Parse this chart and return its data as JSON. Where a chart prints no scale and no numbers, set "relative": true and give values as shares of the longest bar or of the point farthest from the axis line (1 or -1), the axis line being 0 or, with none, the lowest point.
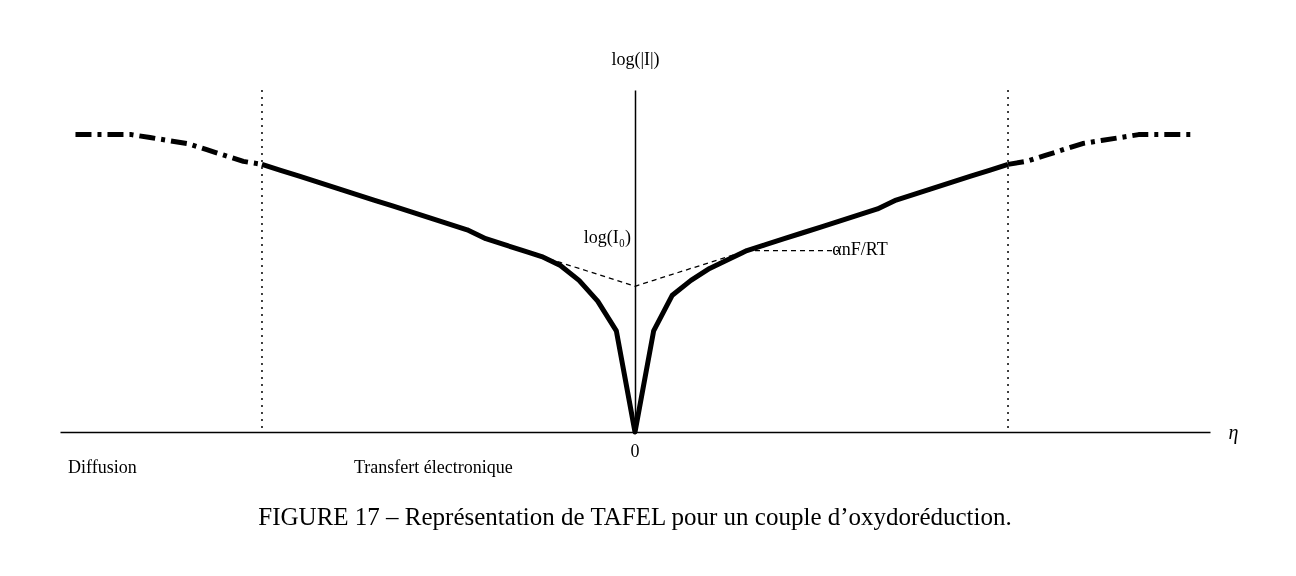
{
  "chart_data": {
    "type": "line",
    "relative": true,
    "title": "FIGURE 17 – Représentation de TAFEL pour un couple d’oxydoréduction.",
    "xlabel": "η",
    "ylabel": "log(|I|)",
    "categories": [
      null,
      null,
      null,
      null,
      null,
      null,
      null,
      null,
      null,
      null,
      null,
      null,
      null,
      null,
      null,
      null,
      null,
      null,
      null,
      null,
      null,
      null,
      null,
      null,
      null,
      null,
      null,
      null,
      null,
      null,
      null,
      null,
      null,
      null,
      null,
      null,
      null,
      null,
      null,
      null,
      null,
      null,
      null,
      null,
      null,
      null,
      null,
      null,
      null,
      null,
      null,
      null,
      null,
      null,
      null,
      null,
      null,
      null,
      null,
      null,
      null
    ],
    "series": [
      {
        "color": "#000000",
        "line_style": "solid",
        "values": [
          null,
          null,
          null,
          null,
          null,
          null,
          null,
          null,
          null,
          null,
          0.9,
          0.88,
          0.86,
          0.84,
          0.82,
          0.8,
          0.78,
          0.76,
          0.74,
          0.72,
          0.7,
          0.68,
          0.65,
          0.63,
          0.61,
          0.59,
          0.56,
          0.51,
          0.44,
          0.34,
          0,
          0.34,
          0.46,
          0.51,
          0.55,
          0.58,
          0.61,
          0.63,
          0.65,
          0.67,
          0.69,
          0.71,
          0.73,
          0.75,
          0.78,
          0.8,
          0.82,
          0.84,
          0.86,
          0.88,
          0.9,
          null,
          null,
          null,
          null,
          null,
          null,
          null,
          null,
          null,
          null
        ]
      },
      {
        "color": "#000000",
        "line_style": "dashdot",
        "values": [
          1.0,
          1.0,
          1.0,
          1.0,
          0.99,
          0.98,
          0.97,
          0.95,
          0.93,
          0.91,
          0.9,
          null,
          null,
          null,
          null,
          null,
          null,
          null,
          null,
          null,
          null,
          null,
          null,
          null,
          null,
          null,
          null,
          null,
          null,
          null,
          null,
          null,
          null,
          null,
          null,
          null,
          null,
          null,
          null,
          null,
          null,
          null,
          null,
          null,
          null,
          null,
          null,
          null,
          null,
          null,
          null,
          null,
          null,
          null,
          null,
          null,
          null,
          null,
          null,
          null,
          null
        ]
      },
      {
        "color": "#000000",
        "line_style": "dashdot",
        "values": [
          null,
          null,
          null,
          null,
          null,
          null,
          null,
          null,
          null,
          null,
          null,
          null,
          null,
          null,
          null,
          null,
          null,
          null,
          null,
          null,
          null,
          null,
          null,
          null,
          null,
          null,
          null,
          null,
          null,
          null,
          null,
          null,
          null,
          null,
          null,
          null,
          null,
          null,
          null,
          null,
          null,
          null,
          null,
          null,
          null,
          null,
          null,
          null,
          null,
          null,
          0.9,
          0.91,
          0.93,
          0.95,
          0.97,
          0.98,
          0.99,
          1.0,
          1.0,
          1.0,
          1.0
        ]
      },
      {
        "color": "#000000",
        "line_style": "dashed",
        "values": [
          null,
          null,
          null,
          null,
          null,
          null,
          null,
          null,
          null,
          null,
          null,
          null,
          null,
          null,
          null,
          null,
          null,
          null,
          null,
          null,
          null,
          null,
          null,
          null,
          0.61,
          0.59,
          0.57,
          0.55,
          0.53,
          0.51,
          0.49,
          0.51,
          0.53,
          0.55,
          0.57,
          0.59,
          0.61,
          0.61,
          0.61,
          0.61,
          0.61,
          0.61,
          null,
          null,
          null,
          null,
          null,
          null,
          null,
          null,
          null,
          null,
          null,
          null,
          null,
          null,
          null,
          null,
          null,
          null,
          null
        ]
      }
    ],
    "annotations": [
      "log(I₀)",
      "0",
      "αnF/RT",
      "Diffusion",
      "Transfert électronique"
    ]
  }
}
